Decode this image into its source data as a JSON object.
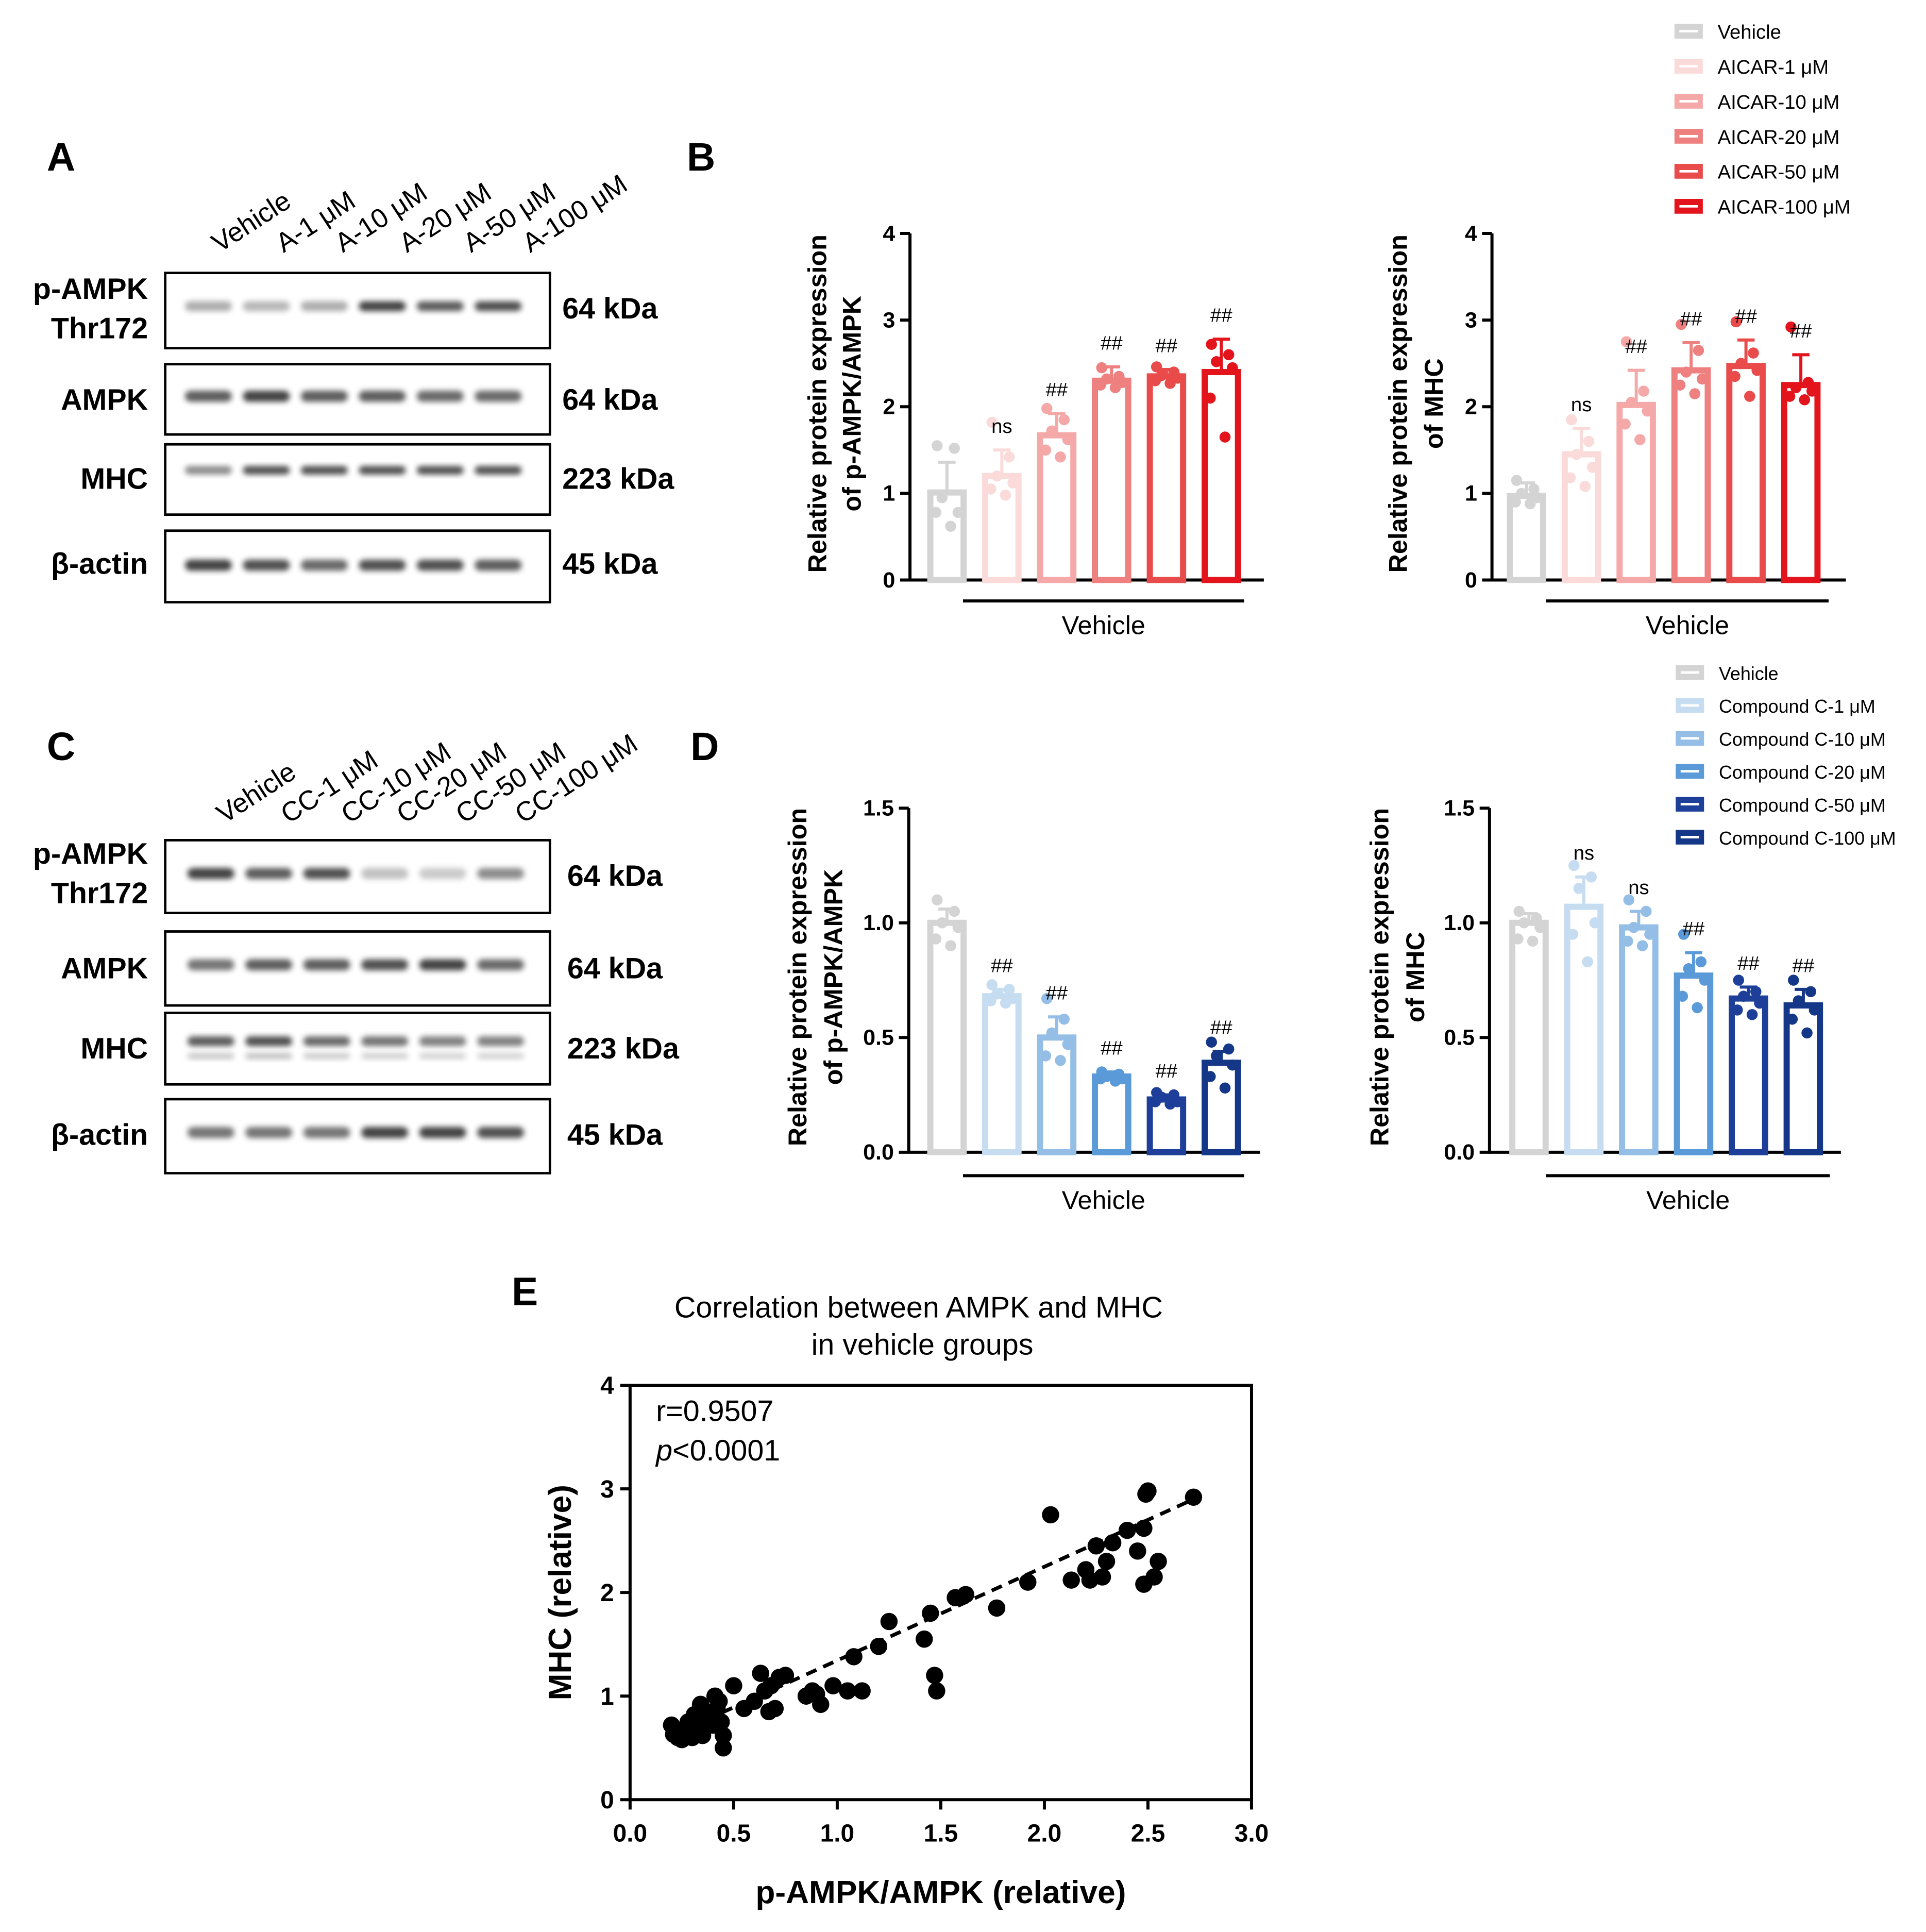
{
  "colors": {
    "aicar": [
      "#d4d4d4",
      "#fbdada",
      "#f4a8a8",
      "#ee8080",
      "#e94a4a",
      "#e3141c"
    ],
    "compound": [
      "#d4d4d4",
      "#c6dcf1",
      "#94bee6",
      "#5a9ad8",
      "#1d3f99",
      "#143787"
    ],
    "ink": "#000000",
    "scatter_point": "#000000"
  },
  "panel_labels": {
    "a": "A",
    "b": "B",
    "c": "C",
    "d": "D",
    "e": "E"
  },
  "blot_a": {
    "lanes": [
      "Vehicle",
      "A-1 μM",
      "A-10 μM",
      "A-20 μM",
      "A-50 μM",
      "A-100 μM"
    ],
    "rows": [
      {
        "label_line1": "p-AMPK",
        "label_line2": "Thr172",
        "size": "64 kDa",
        "intensity": [
          0.45,
          0.4,
          0.45,
          0.9,
          0.8,
          0.85
        ]
      },
      {
        "label_line1": "AMPK",
        "label_line2": "",
        "size": "64 kDa",
        "intensity": [
          0.8,
          0.9,
          0.8,
          0.8,
          0.75,
          0.75
        ]
      },
      {
        "label_line1": "MHC",
        "label_line2": "",
        "size": "223 kDa",
        "intensity": [
          0.6,
          0.85,
          0.85,
          0.85,
          0.85,
          0.85
        ]
      },
      {
        "label_line1": "β-actin",
        "label_line2": "",
        "size": "45 kDa",
        "intensity": [
          0.9,
          0.85,
          0.75,
          0.85,
          0.85,
          0.8
        ]
      }
    ]
  },
  "blot_c": {
    "lanes": [
      "Vehicle",
      "CC-1 μM",
      "CC-10 μM",
      "CC-20 μM",
      "CC-50 μM",
      "CC-100 μM"
    ],
    "rows": [
      {
        "label_line1": "p-AMPK",
        "label_line2": "Thr172",
        "size": "64 kDa",
        "intensity": [
          0.9,
          0.8,
          0.85,
          0.35,
          0.3,
          0.6
        ]
      },
      {
        "label_line1": "AMPK",
        "label_line2": "",
        "size": "64 kDa",
        "intensity": [
          0.7,
          0.8,
          0.8,
          0.85,
          0.9,
          0.75
        ]
      },
      {
        "label_line1": "MHC",
        "label_line2": "",
        "size": "223 kDa",
        "intensity": [
          0.8,
          0.85,
          0.75,
          0.7,
          0.65,
          0.65
        ]
      },
      {
        "label_line1": "β-actin",
        "label_line2": "",
        "size": "45 kDa",
        "intensity": [
          0.7,
          0.7,
          0.7,
          0.9,
          0.9,
          0.85
        ]
      }
    ]
  },
  "legend_b": {
    "entries": [
      "Vehicle",
      "AICAR-1 μM",
      "AICAR-10 μM",
      "AICAR-20 μM",
      "AICAR-50 μM",
      "AICAR-100 μM"
    ]
  },
  "legend_d": {
    "entries": [
      "Vehicle",
      "Compound C-1 μM",
      "Compound C-10 μM",
      "Compound C-20 μM",
      "Compound C-50 μM",
      "Compound C-100 μM"
    ]
  },
  "chart_data": [
    {
      "id": "b1",
      "type": "bar",
      "palette": "aicar",
      "ylabel_line1": "Relative protein expression",
      "ylabel_line2": "of p-AMPK/AMPK",
      "group_label": "Vehicle",
      "ylim": [
        0,
        4
      ],
      "yticks": [
        "0",
        "1",
        "2",
        "3",
        "4"
      ],
      "ytick_values": [
        0,
        1,
        2,
        3,
        4
      ],
      "values": [
        1.01,
        1.2,
        1.67,
        2.3,
        2.35,
        2.4
      ],
      "sd": [
        0.35,
        0.3,
        0.25,
        0.16,
        0.08,
        0.38
      ],
      "significance": [
        "",
        "ns",
        "##",
        "##",
        "##",
        "##"
      ],
      "points": [
        [
          1.55,
          1.52,
          0.95,
          0.78,
          0.78,
          0.62
        ],
        [
          1.82,
          1.42,
          1.2,
          1.12,
          1.05,
          0.98
        ],
        [
          1.98,
          1.85,
          1.72,
          1.62,
          1.5,
          1.42
        ],
        [
          2.45,
          2.35,
          2.32,
          2.28,
          2.25,
          2.22
        ],
        [
          2.46,
          2.4,
          2.36,
          2.33,
          2.3,
          2.27
        ],
        [
          2.72,
          2.6,
          2.52,
          2.45,
          2.1,
          1.65
        ]
      ]
    },
    {
      "id": "b2",
      "type": "bar",
      "palette": "aicar",
      "ylabel_line1": "Relative protein expression",
      "ylabel_line2": "of MHC",
      "group_label": "Vehicle",
      "ylim": [
        0,
        4
      ],
      "yticks": [
        "0",
        "1",
        "2",
        "3",
        "4"
      ],
      "ytick_values": [
        0,
        1,
        2,
        3,
        4
      ],
      "values": [
        0.97,
        1.45,
        2.02,
        2.42,
        2.47,
        2.25
      ],
      "sd": [
        0.15,
        0.3,
        0.4,
        0.32,
        0.3,
        0.35
      ],
      "significance": [
        "",
        "ns",
        "##",
        "##",
        "##",
        "##"
      ],
      "points": [
        [
          1.15,
          1.05,
          1.0,
          0.95,
          0.9,
          0.88
        ],
        [
          1.85,
          1.6,
          1.45,
          1.3,
          1.18,
          1.08
        ],
        [
          2.75,
          2.18,
          2.05,
          1.95,
          1.8,
          1.62
        ],
        [
          2.95,
          2.65,
          2.4,
          2.32,
          2.25,
          2.15
        ],
        [
          2.98,
          2.62,
          2.5,
          2.42,
          2.35,
          2.12
        ],
        [
          2.92,
          2.28,
          2.22,
          2.18,
          2.12,
          2.08
        ]
      ]
    },
    {
      "id": "d1",
      "type": "bar",
      "palette": "compound",
      "ylabel_line1": "Relative protein expression",
      "ylabel_line2": "of p-AMPK/AMPK",
      "group_label": "Vehicle",
      "ylim": [
        0,
        1.5
      ],
      "yticks": [
        "0.0",
        "0.5",
        "1.0",
        "1.5"
      ],
      "ytick_values": [
        0,
        0.5,
        1.0,
        1.5
      ],
      "values": [
        1.0,
        0.68,
        0.5,
        0.33,
        0.23,
        0.39
      ],
      "sd": [
        0.06,
        0.03,
        0.09,
        0.02,
        0.02,
        0.05
      ],
      "significance": [
        "",
        "##",
        "##",
        "##",
        "##",
        "##"
      ],
      "points": [
        [
          1.1,
          1.05,
          1.0,
          0.98,
          0.93,
          0.9
        ],
        [
          0.73,
          0.71,
          0.69,
          0.67,
          0.66,
          0.65
        ],
        [
          0.67,
          0.58,
          0.52,
          0.47,
          0.42,
          0.4
        ],
        [
          0.35,
          0.34,
          0.33,
          0.32,
          0.32,
          0.31
        ],
        [
          0.26,
          0.25,
          0.24,
          0.22,
          0.22,
          0.21
        ],
        [
          0.48,
          0.45,
          0.42,
          0.38,
          0.33,
          0.28
        ]
      ]
    },
    {
      "id": "d2",
      "type": "bar",
      "palette": "compound",
      "ylabel_line1": "Relative protein expression",
      "ylabel_line2": "of MHC",
      "group_label": "Vehicle",
      "ylim": [
        0,
        1.5
      ],
      "yticks": [
        "0.0",
        "0.5",
        "1.0",
        "1.5"
      ],
      "ytick_values": [
        0,
        0.5,
        1.0,
        1.5
      ],
      "values": [
        1.0,
        1.07,
        0.98,
        0.77,
        0.67,
        0.64
      ],
      "sd": [
        0.04,
        0.13,
        0.07,
        0.1,
        0.05,
        0.07
      ],
      "significance": [
        "",
        "ns",
        "ns",
        "##",
        "##",
        "##"
      ],
      "points": [
        [
          1.05,
          1.02,
          1.0,
          0.98,
          0.93,
          0.92
        ],
        [
          1.25,
          1.2,
          1.15,
          1.0,
          0.95,
          0.83
        ],
        [
          1.1,
          1.05,
          0.98,
          0.95,
          0.92,
          0.9
        ],
        [
          0.95,
          0.83,
          0.8,
          0.75,
          0.68,
          0.63
        ],
        [
          0.75,
          0.7,
          0.68,
          0.65,
          0.62,
          0.6
        ],
        [
          0.75,
          0.7,
          0.66,
          0.62,
          0.58,
          0.52
        ]
      ]
    },
    {
      "id": "e",
      "type": "scatter",
      "title_line1": "Correlation between AMPK and MHC",
      "title_line2": "in vehicle groups",
      "xlabel": "p-AMPK/AMPK (relative)",
      "ylabel": "MHC (relative)",
      "xlim": [
        0,
        3
      ],
      "ylim": [
        0,
        4
      ],
      "xticks": [
        "0.0",
        "0.5",
        "1.0",
        "1.5",
        "2.0",
        "2.5",
        "3.0"
      ],
      "xtick_values": [
        0,
        0.5,
        1,
        1.5,
        2,
        2.5,
        3
      ],
      "yticks": [
        "0",
        "1",
        "2",
        "3",
        "4"
      ],
      "ytick_values": [
        0,
        1,
        2,
        3,
        4
      ],
      "stat_r": "r=0.9507",
      "stat_p_italic": "p",
      "stat_p_rest": "<0.0001",
      "fit": {
        "x": [
          0.2,
          2.72
        ],
        "y": [
          0.62,
          2.9
        ]
      },
      "points": [
        [
          0.2,
          0.72
        ],
        [
          0.21,
          0.63
        ],
        [
          0.23,
          0.6
        ],
        [
          0.25,
          0.58
        ],
        [
          0.26,
          0.66
        ],
        [
          0.27,
          0.63
        ],
        [
          0.28,
          0.75
        ],
        [
          0.3,
          0.6
        ],
        [
          0.31,
          0.82
        ],
        [
          0.32,
          0.7
        ],
        [
          0.33,
          0.65
        ],
        [
          0.34,
          0.92
        ],
        [
          0.35,
          0.62
        ],
        [
          0.36,
          0.86
        ],
        [
          0.38,
          0.78
        ],
        [
          0.4,
          0.72
        ],
        [
          0.41,
          1.0
        ],
        [
          0.42,
          0.88
        ],
        [
          0.43,
          0.95
        ],
        [
          0.44,
          0.75
        ],
        [
          0.45,
          0.62
        ],
        [
          0.45,
          0.5
        ],
        [
          0.5,
          1.1
        ],
        [
          0.55,
          0.88
        ],
        [
          0.6,
          0.95
        ],
        [
          0.63,
          1.22
        ],
        [
          0.65,
          1.05
        ],
        [
          0.67,
          0.85
        ],
        [
          0.68,
          1.1
        ],
        [
          0.7,
          0.88
        ],
        [
          0.72,
          1.18
        ],
        [
          0.75,
          1.2
        ],
        [
          0.85,
          1.0
        ],
        [
          0.88,
          1.05
        ],
        [
          0.9,
          1.02
        ],
        [
          0.92,
          0.92
        ],
        [
          0.98,
          1.1
        ],
        [
          1.05,
          1.05
        ],
        [
          1.08,
          1.38
        ],
        [
          1.12,
          1.05
        ],
        [
          1.2,
          1.48
        ],
        [
          1.25,
          1.72
        ],
        [
          1.42,
          1.55
        ],
        [
          1.45,
          1.8
        ],
        [
          1.47,
          1.2
        ],
        [
          1.48,
          1.05
        ],
        [
          1.57,
          1.95
        ],
        [
          1.62,
          1.98
        ],
        [
          1.77,
          1.85
        ],
        [
          1.92,
          2.1
        ],
        [
          2.03,
          2.75
        ],
        [
          2.13,
          2.12
        ],
        [
          2.2,
          2.22
        ],
        [
          2.22,
          2.12
        ],
        [
          2.25,
          2.45
        ],
        [
          2.28,
          2.15
        ],
        [
          2.3,
          2.3
        ],
        [
          2.33,
          2.48
        ],
        [
          2.4,
          2.6
        ],
        [
          2.45,
          2.4
        ],
        [
          2.48,
          2.62
        ],
        [
          2.48,
          2.08
        ],
        [
          2.49,
          2.95
        ],
        [
          2.5,
          2.98
        ],
        [
          2.53,
          2.15
        ],
        [
          2.55,
          2.3
        ],
        [
          2.72,
          2.92
        ]
      ]
    }
  ]
}
